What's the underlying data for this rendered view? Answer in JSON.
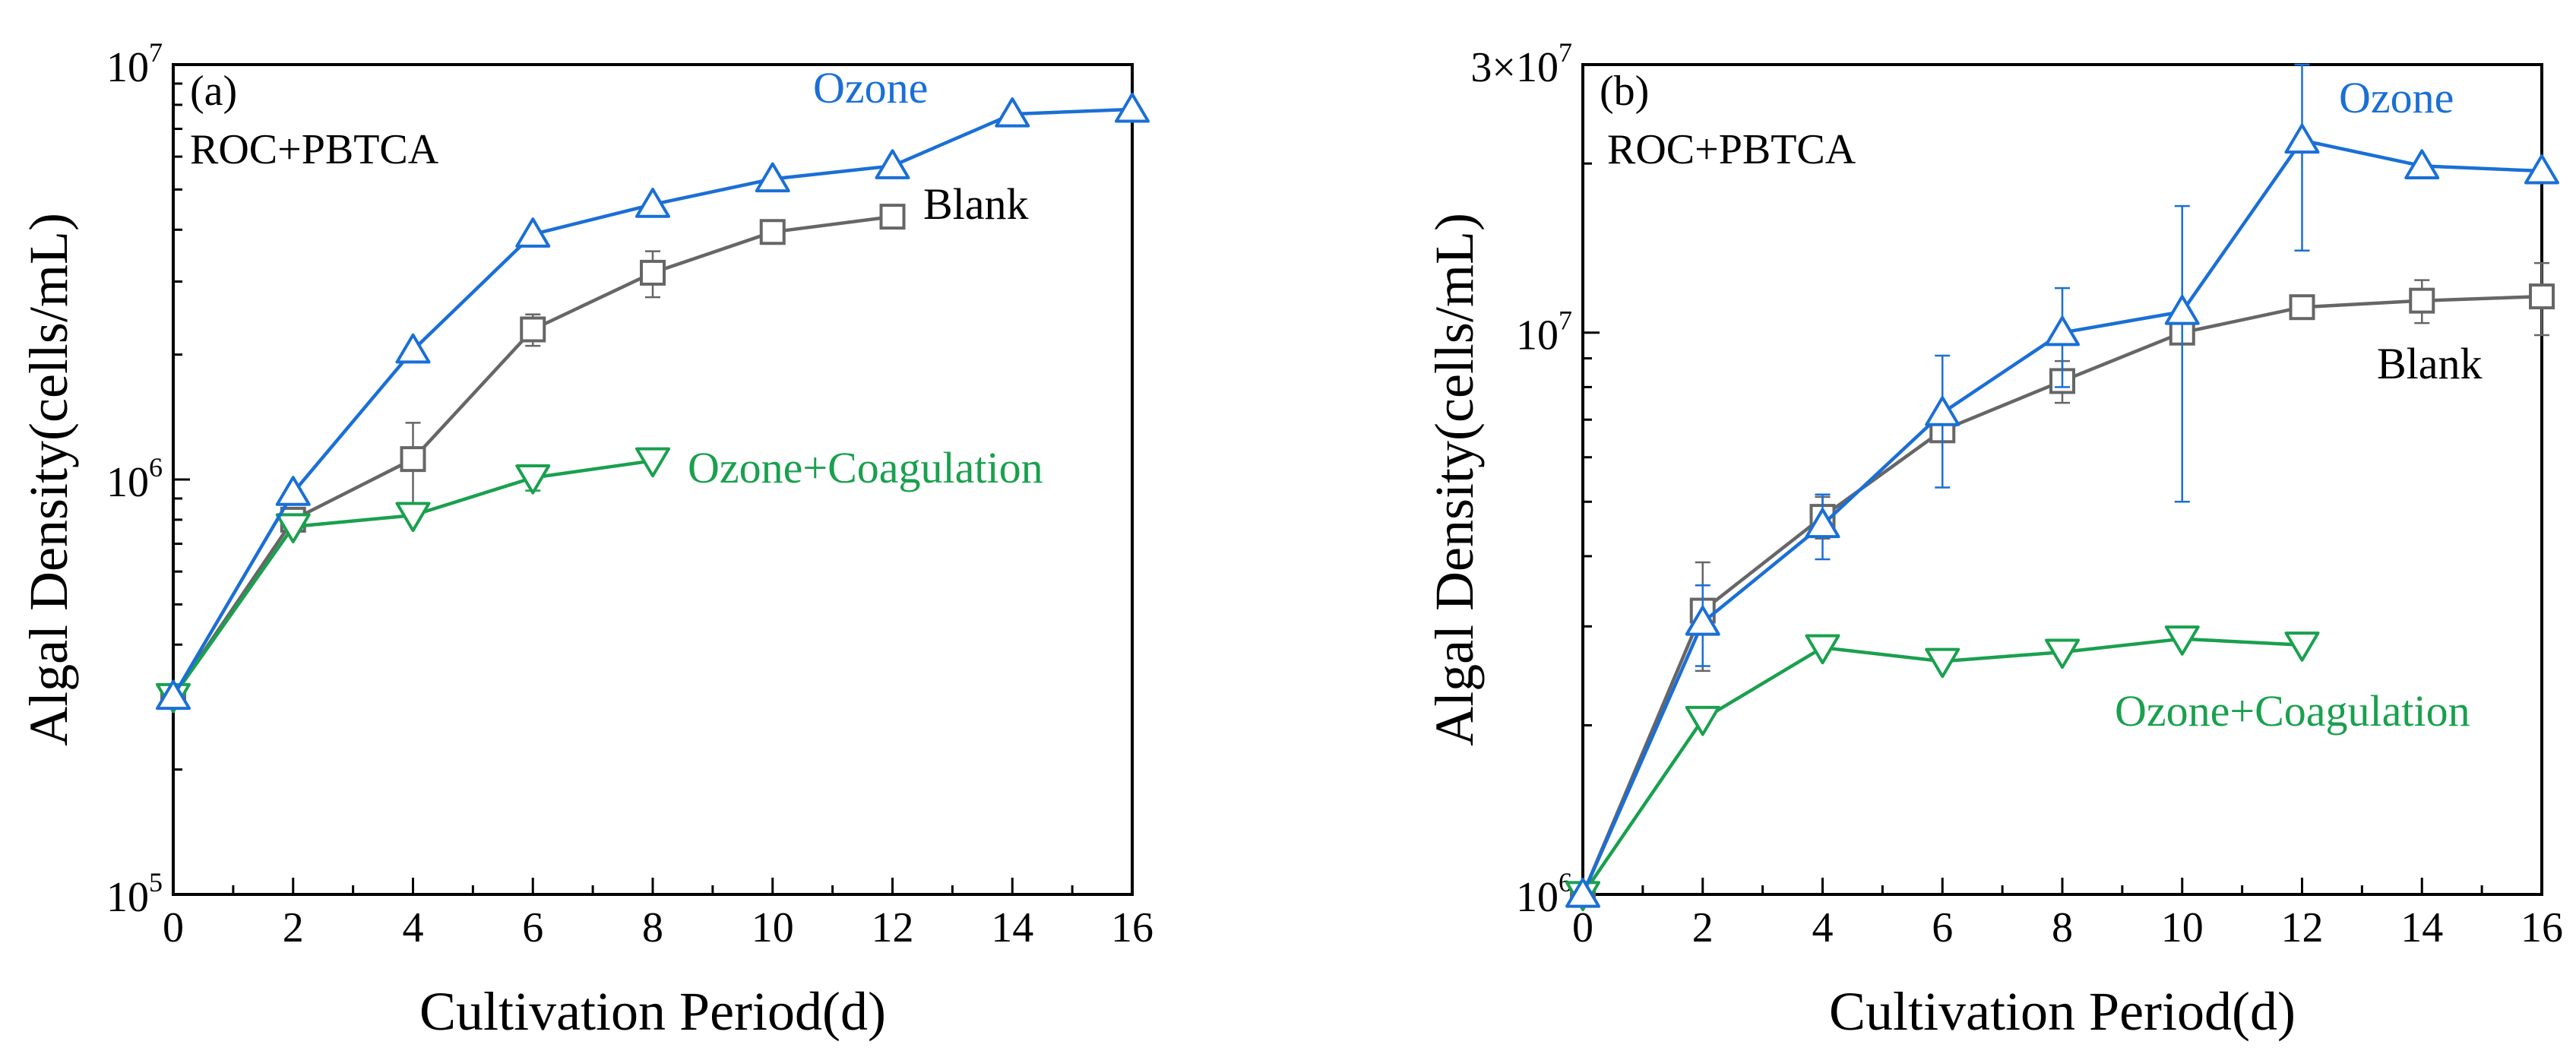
{
  "chart_data": [
    {
      "type": "line",
      "panel_label": "(a)",
      "annotation": "ROC+PBTCA",
      "xlabel": "Cultivation Period(d)",
      "ylabel": "Algal Density(cells/mL)",
      "y_scale": "log",
      "xlim": [
        0,
        16
      ],
      "ylim": [
        100000,
        10000000
      ],
      "x_ticks": [
        "0",
        "2",
        "4",
        "6",
        "8",
        "10",
        "12",
        "14",
        "16"
      ],
      "y_ticks": [
        {
          "base": "10",
          "exp": "5"
        },
        {
          "base": "10",
          "exp": "6"
        },
        {
          "base": "10",
          "exp": "7"
        }
      ],
      "series": [
        {
          "name": "Ozone",
          "color": "#1a6fd6",
          "marker": "triangle-up",
          "x": [
            0,
            2,
            4,
            6,
            8,
            10,
            12,
            14,
            16
          ],
          "values": [
            300000,
            930000,
            2050000,
            3900000,
            4600000,
            5300000,
            5700000,
            7600000,
            7800000
          ],
          "errors": [
            0,
            0,
            0,
            0,
            0,
            0,
            0,
            0,
            0
          ]
        },
        {
          "name": "Blank",
          "color": "#666666",
          "marker": "square",
          "x": [
            0,
            2,
            4,
            6,
            8,
            10,
            12
          ],
          "values": [
            300000,
            800000,
            1120000,
            2300000,
            3150000,
            3950000,
            4300000
          ],
          "errors": [
            0,
            0,
            250000,
            200000,
            400000,
            200000,
            0
          ]
        },
        {
          "name": "Ozone+Coagulation",
          "color": "#1aa04e",
          "marker": "triangle-down",
          "x": [
            0,
            2,
            4,
            6,
            8
          ],
          "values": [
            300000,
            770000,
            820000,
            1010000,
            1110000
          ],
          "errors": [
            0,
            0,
            0,
            70000,
            0
          ]
        }
      ]
    },
    {
      "type": "line",
      "panel_label": "(b)",
      "annotation": "ROC+PBTCA",
      "xlabel": "Cultivation Period(d)",
      "ylabel": "Algal Density(cells/mL)",
      "y_scale": "log",
      "xlim": [
        0,
        16
      ],
      "ylim": [
        1000000,
        30000000
      ],
      "x_ticks": [
        "0",
        "2",
        "4",
        "6",
        "8",
        "10",
        "12",
        "14",
        "16"
      ],
      "y_ticks": [
        {
          "base": "10",
          "exp": "6"
        },
        {
          "base": "10",
          "exp": "7"
        },
        {
          "base": "3×10",
          "exp": "7"
        }
      ],
      "series": [
        {
          "name": "Ozone",
          "color": "#1a6fd6",
          "marker": "triangle-up",
          "x": [
            0,
            2,
            4,
            6,
            8,
            10,
            12,
            14,
            16
          ],
          "values": [
            1000000,
            3050000,
            4550000,
            7200000,
            10000000,
            10900000,
            22000000,
            19800000,
            19400000
          ],
          "errors": [
            0,
            500000,
            600000,
            1900000,
            2000000,
            5900000,
            8000000,
            0,
            0
          ]
        },
        {
          "name": "Blank",
          "color": "#666666",
          "marker": "square",
          "x": [
            0,
            2,
            4,
            6,
            8,
            10,
            12,
            14,
            16
          ],
          "values": [
            1000000,
            3200000,
            4700000,
            6700000,
            8200000,
            10000000,
            11100000,
            11400000,
            11600000
          ],
          "errors": [
            0,
            700000,
            400000,
            0,
            700000,
            0,
            0,
            1000000,
            1700000
          ]
        },
        {
          "name": "Ozone+Coagulation",
          "color": "#1aa04e",
          "marker": "triangle-down",
          "x": [
            0,
            2,
            4,
            6,
            8,
            10,
            12
          ],
          "values": [
            1000000,
            2050000,
            2750000,
            2600000,
            2700000,
            2850000,
            2780000
          ],
          "errors": [
            0,
            0,
            0,
            0,
            0,
            0,
            0
          ]
        }
      ]
    }
  ]
}
